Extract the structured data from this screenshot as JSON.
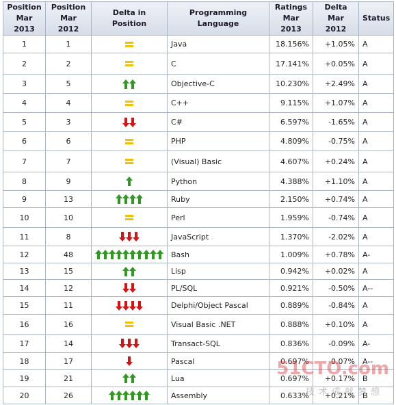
{
  "table": {
    "header": [
      [
        "Position",
        "Mar 2013"
      ],
      [
        "Position",
        "Mar 2012"
      ],
      [
        "Delta in Position"
      ],
      [
        "Programming Language"
      ],
      [
        "Ratings",
        "Mar 2013"
      ],
      [
        "Delta",
        "Mar 2012"
      ],
      [
        "Status"
      ]
    ],
    "rows": [
      [
        "1",
        "1",
        "Java",
        "18.156%",
        "+1.05%",
        "A"
      ],
      [
        "2",
        "2",
        "C",
        "17.141%",
        "+0.05%",
        "A"
      ],
      [
        "3",
        "5",
        "Objective-C",
        "10.230%",
        "+2.49%",
        "A"
      ],
      [
        "4",
        "4",
        "C++",
        "9.115%",
        "+1.07%",
        "A"
      ],
      [
        "5",
        "3",
        "C#",
        "6.597%",
        "-1.65%",
        "A"
      ],
      [
        "6",
        "6",
        "PHP",
        "4.809%",
        "-0.75%",
        "A"
      ],
      [
        "7",
        "7",
        "(Visual) Basic",
        "4.607%",
        "+0.24%",
        "A"
      ],
      [
        "8",
        "9",
        "Python",
        "4.388%",
        "+1.10%",
        "A"
      ],
      [
        "9",
        "13",
        "Ruby",
        "2.150%",
        "+0.74%",
        "A"
      ],
      [
        "10",
        "10",
        "Perl",
        "1.959%",
        "-0.74%",
        "A"
      ],
      [
        "11",
        "8",
        "JavaScript",
        "1.370%",
        "-2.02%",
        "A"
      ],
      [
        "12",
        "48",
        "Bash",
        "1.009%",
        "+0.78%",
        "A-"
      ],
      [
        "13",
        "15",
        "Lisp",
        "0.942%",
        "+0.02%",
        "A"
      ],
      [
        "14",
        "12",
        "PL/SQL",
        "0.921%",
        "-0.50%",
        "A--"
      ],
      [
        "15",
        "11",
        "Delphi/Object Pascal",
        "0.889%",
        "-0.84%",
        "A"
      ],
      [
        "16",
        "16",
        "Visual Basic .NET",
        "0.888%",
        "+0.10%",
        "A"
      ],
      [
        "17",
        "14",
        "Transact-SQL",
        "0.836%",
        "-0.09%",
        "A-"
      ],
      [
        "18",
        "17",
        "Pascal",
        "0.697%",
        "-0.07%",
        "A--"
      ],
      [
        "19",
        "21",
        "Lua",
        "0.697%",
        "+0.17%",
        "B"
      ],
      [
        "20",
        "26",
        "Assembly",
        "0.633%",
        "+0.21%",
        "B"
      ]
    ]
  },
  "watermark": {
    "site": "51CTO.com",
    "slogan": "技术成就梦想"
  }
}
